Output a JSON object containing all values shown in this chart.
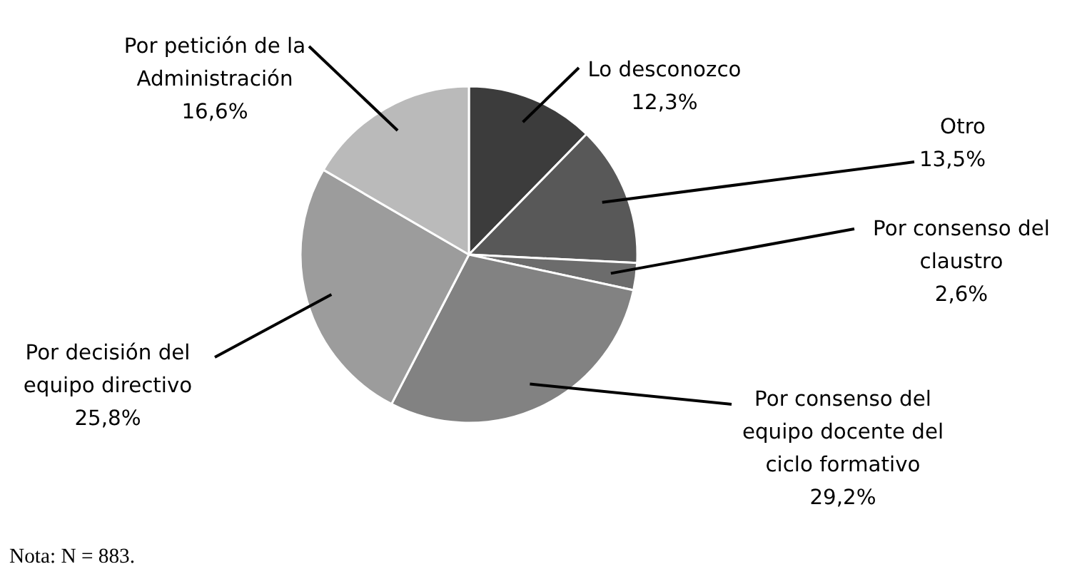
{
  "chart_data": {
    "type": "pie",
    "categories": [
      "Lo desconozco",
      "Otro",
      "Por consenso del\nclaustro",
      "Por consenso del\nequipo docente del\nciclo formativo",
      "Por decisión del\nequipo directivo",
      "Por petición de la\nAdministración"
    ],
    "values": [
      12.3,
      13.5,
      2.6,
      29.2,
      25.8,
      16.6
    ],
    "value_labels": [
      "12,3%",
      "13,5%",
      "2,6%",
      "29,2%",
      "25,8%",
      "16,6%"
    ],
    "colors": [
      "#3c3c3c",
      "#585858",
      "#6c6c6c",
      "#828282",
      "#9c9c9c",
      "#bababa"
    ],
    "annotations": [
      "Nota: N = 883."
    ]
  }
}
